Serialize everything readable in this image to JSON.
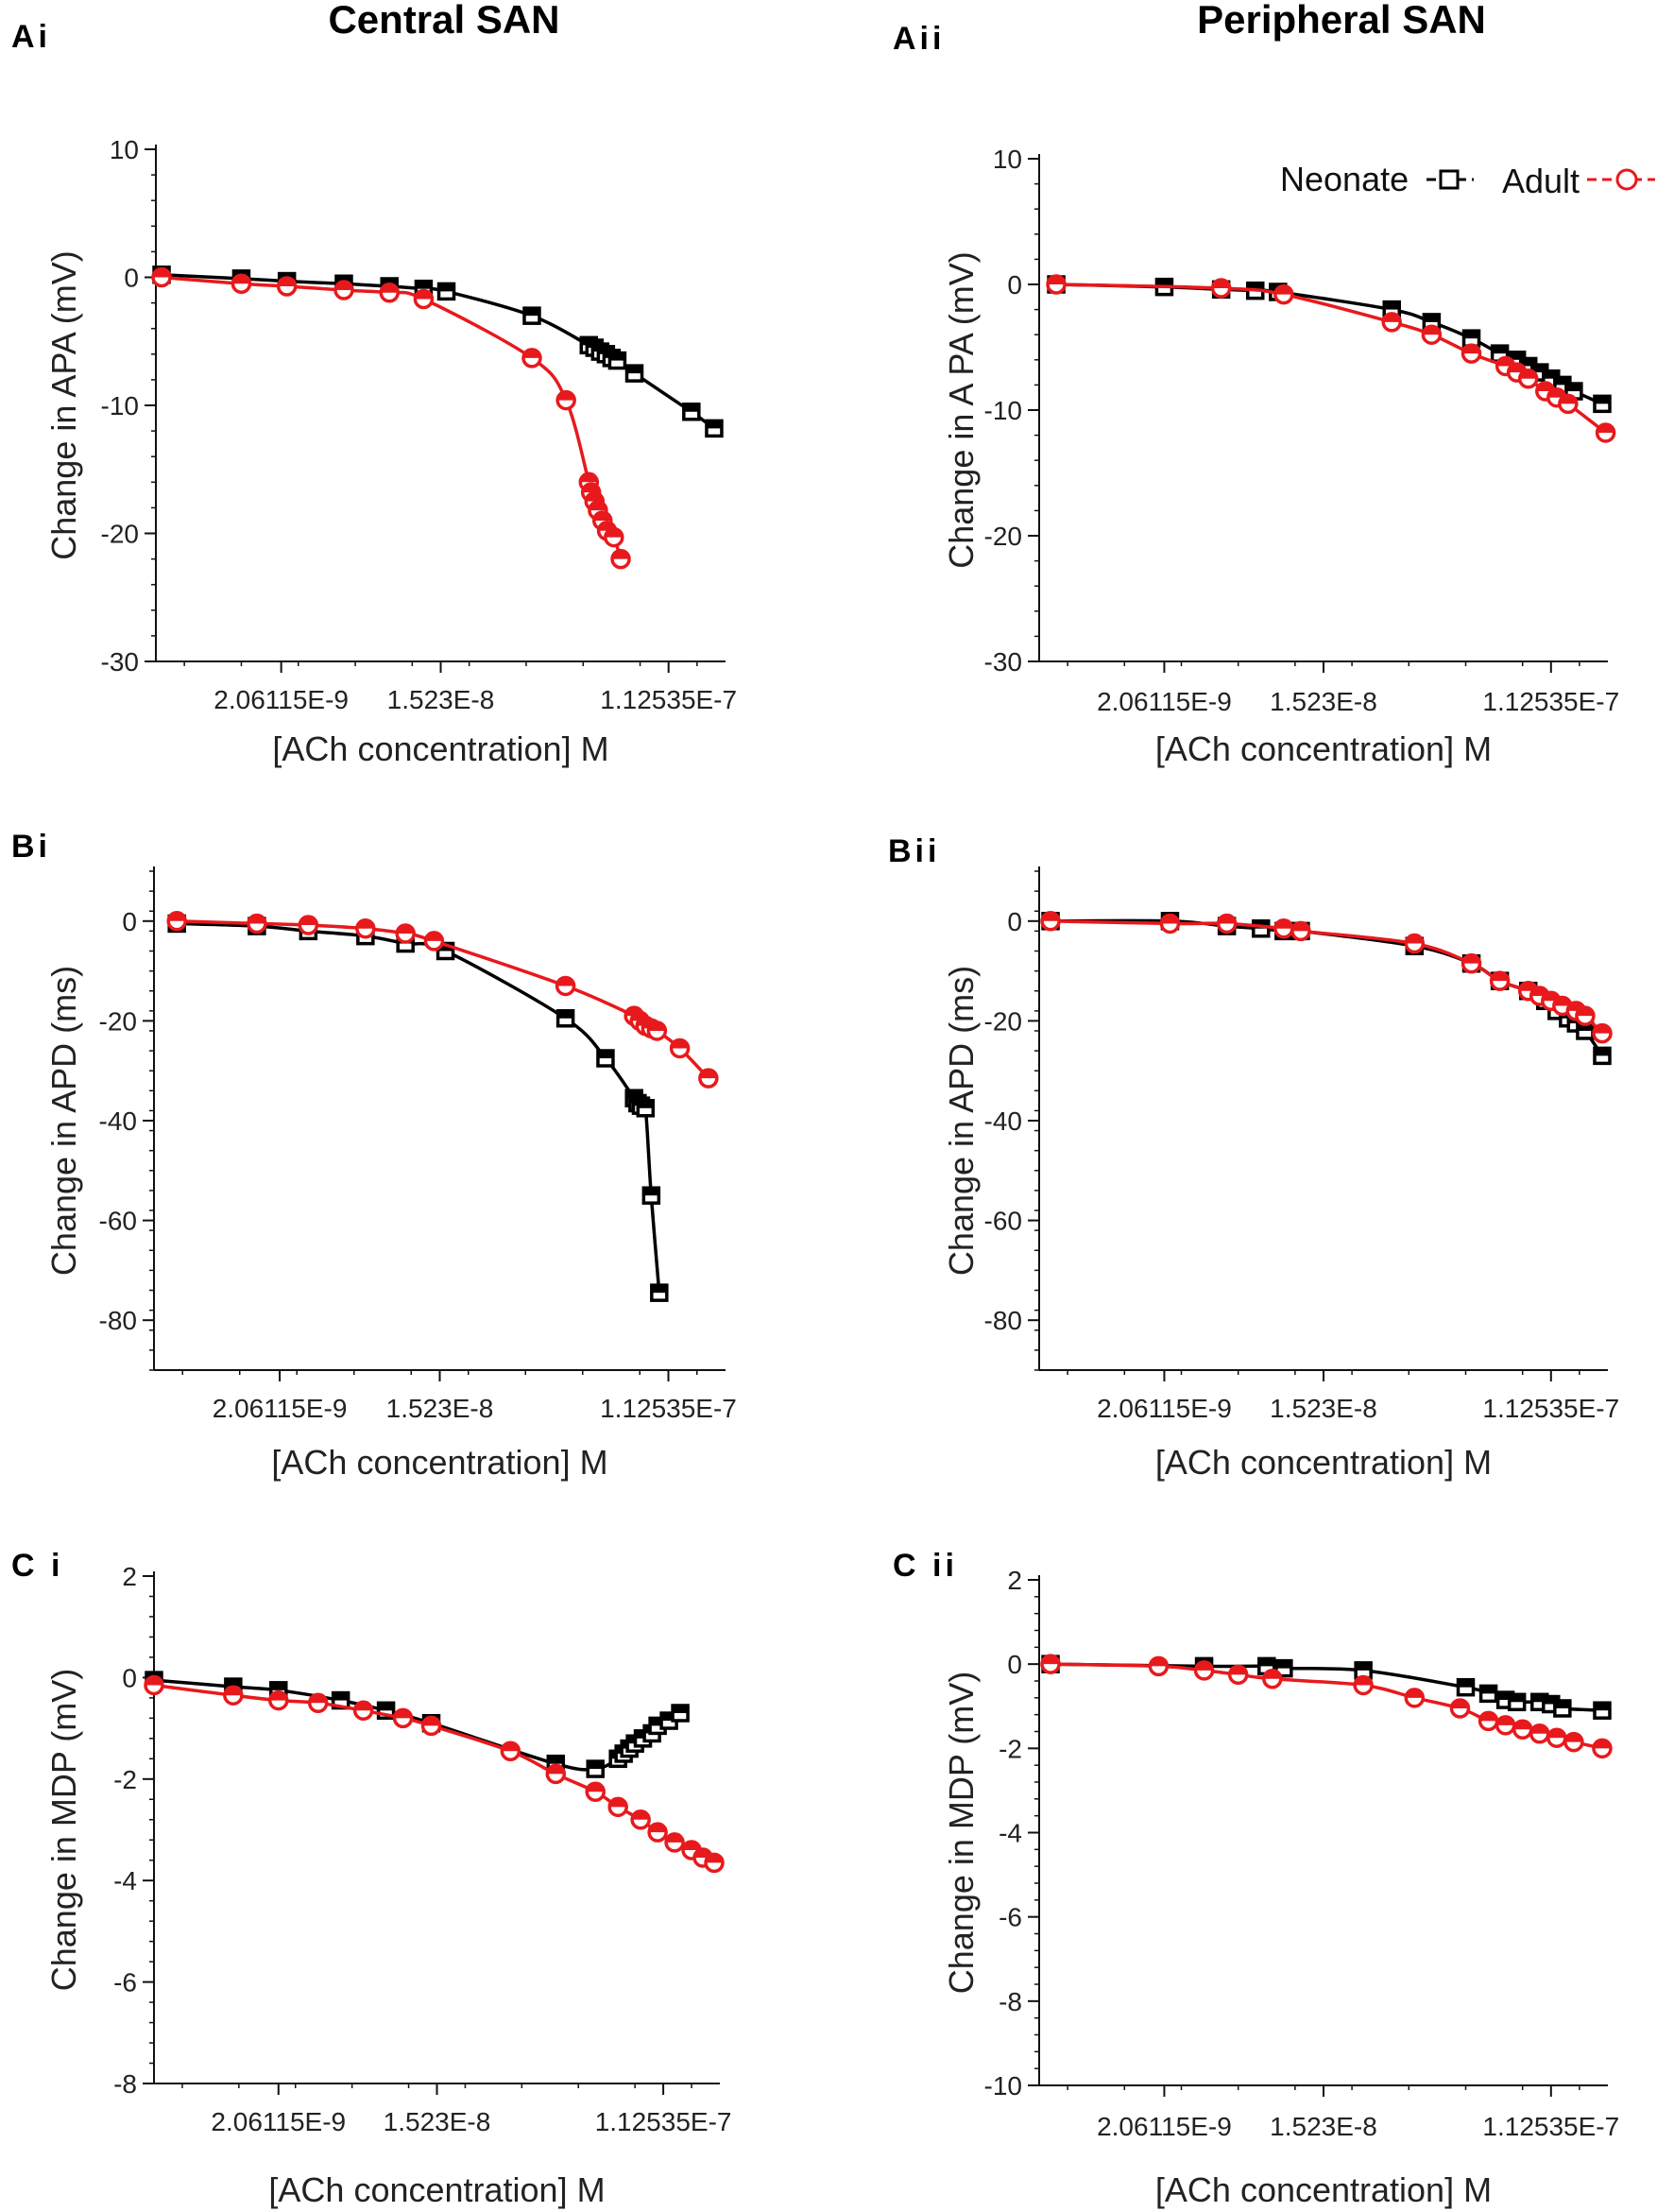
{
  "titles": {
    "left": "Central SAN",
    "right": "Peripheral SAN"
  },
  "legend": [
    {
      "label": "Neonate",
      "color": "#000000",
      "marker": "square"
    },
    {
      "label": "Adult",
      "color": "#e8191c",
      "marker": "circle"
    }
  ],
  "chart_data": [
    {
      "id": "Ai",
      "panel_label": "Ai",
      "type": "line",
      "xlabel": "[ACh  concentration] M",
      "ylabel": "Change in APA  (mV)",
      "xticks": [
        "2.06115E-9",
        "1.523E-8",
        "1.12535E-7"
      ],
      "xlim": [
        0,
        5
      ],
      "ylim": [
        -30,
        10
      ],
      "yticks": [
        10,
        0,
        -10,
        -20,
        -30
      ],
      "series": [
        {
          "name": "Neonate",
          "x": [
            0.05,
            0.75,
            1.15,
            1.65,
            2.05,
            2.35,
            2.55,
            3.3,
            3.8,
            3.85,
            3.9,
            3.95,
            4.0,
            4.05,
            4.2,
            4.7,
            4.9
          ],
          "values": [
            0.2,
            -0.1,
            -0.3,
            -0.5,
            -0.7,
            -0.9,
            -1.1,
            -3.0,
            -5.3,
            -5.5,
            -5.8,
            -6.0,
            -6.3,
            -6.5,
            -7.5,
            -10.5,
            -11.8
          ]
        },
        {
          "name": "Adult",
          "x": [
            0.05,
            0.75,
            1.15,
            1.65,
            2.05,
            2.35,
            3.3,
            3.6,
            3.8,
            3.82,
            3.85,
            3.88,
            3.92,
            3.96,
            4.02,
            4.08
          ],
          "values": [
            0.0,
            -0.5,
            -0.7,
            -1.0,
            -1.2,
            -1.7,
            -6.3,
            -9.6,
            -16.0,
            -16.8,
            -17.5,
            -18.2,
            -19.0,
            -19.8,
            -20.3,
            -22.0
          ]
        }
      ]
    },
    {
      "id": "Aii",
      "panel_label": "Aii",
      "type": "line",
      "xlabel": "[ACh  concentration] M",
      "ylabel": "Change in A PA  (mV)",
      "xticks": [
        "2.06115E-9",
        "1.523E-8",
        "1.12535E-7"
      ],
      "xlim": [
        0,
        5
      ],
      "ylim": [
        -30,
        10
      ],
      "yticks": [
        10,
        0,
        -10,
        -20,
        -30
      ],
      "series": [
        {
          "name": "Neonate",
          "x": [
            0.15,
            1.1,
            1.6,
            1.9,
            2.1,
            3.1,
            3.45,
            3.8,
            4.05,
            4.2,
            4.3,
            4.4,
            4.5,
            4.6,
            4.7,
            4.95
          ],
          "values": [
            0.0,
            -0.2,
            -0.4,
            -0.5,
            -0.6,
            -2.0,
            -3.0,
            -4.3,
            -5.5,
            -6.0,
            -6.5,
            -7.0,
            -7.5,
            -8.0,
            -8.5,
            -9.5
          ]
        },
        {
          "name": "Adult",
          "x": [
            0.15,
            1.6,
            2.15,
            3.1,
            3.45,
            3.8,
            4.1,
            4.2,
            4.3,
            4.45,
            4.55,
            4.65,
            4.98
          ],
          "values": [
            0.0,
            -0.3,
            -0.8,
            -3.0,
            -4.0,
            -5.5,
            -6.5,
            -7.0,
            -7.5,
            -8.5,
            -9.0,
            -9.5,
            -11.8
          ]
        }
      ]
    },
    {
      "id": "Bi",
      "panel_label": "Bi",
      "type": "line",
      "xlabel": "[ACh  concentration] M",
      "ylabel": "Change in APD  (ms)",
      "xticks": [
        "2.06115E-9",
        "1.523E-8",
        "1.12535E-7"
      ],
      "xlim": [
        0,
        5
      ],
      "ylim": [
        -90,
        10
      ],
      "yticks": [
        0,
        -20,
        -40,
        -60,
        -80
      ],
      "series": [
        {
          "name": "Neonate",
          "x": [
            0.2,
            0.9,
            1.35,
            1.85,
            2.2,
            2.55,
            3.6,
            3.95,
            4.2,
            4.23,
            4.26,
            4.3,
            4.35,
            4.42
          ],
          "values": [
            -0.5,
            -1.0,
            -2.0,
            -3.0,
            -4.5,
            -6.0,
            -19.5,
            -27.5,
            -35.5,
            -36.5,
            -37.0,
            -37.5,
            -55.0,
            -74.5
          ]
        },
        {
          "name": "Adult",
          "x": [
            0.2,
            0.9,
            1.35,
            1.85,
            2.2,
            2.45,
            3.6,
            4.2,
            4.25,
            4.3,
            4.35,
            4.4,
            4.6,
            4.85
          ],
          "values": [
            0.0,
            -0.5,
            -0.8,
            -1.5,
            -2.5,
            -4.0,
            -13.0,
            -19.0,
            -20.0,
            -21.0,
            -21.5,
            -22.0,
            -25.5,
            -31.5
          ]
        }
      ]
    },
    {
      "id": "Bii",
      "panel_label": "Bii",
      "type": "line",
      "xlabel": "[ACh  concentration] M",
      "ylabel": "Change in APD  (ms)",
      "xticks": [
        "2.06115E-9",
        "1.523E-8",
        "1.12535E-7"
      ],
      "xlim": [
        0,
        5
      ],
      "ylim": [
        -90,
        10
      ],
      "yticks": [
        0,
        -20,
        -40,
        -60,
        -80
      ],
      "series": [
        {
          "name": "Neonate",
          "x": [
            0.1,
            1.15,
            1.65,
            1.95,
            2.15,
            2.3,
            3.3,
            3.8,
            4.05,
            4.3,
            4.45,
            4.55,
            4.65,
            4.72,
            4.8,
            4.95
          ],
          "values": [
            0.0,
            0.0,
            -1.0,
            -1.5,
            -2.0,
            -2.0,
            -5.0,
            -8.5,
            -12.0,
            -14.0,
            -16.0,
            -18.0,
            -19.5,
            -20.5,
            -22.0,
            -27.0
          ]
        },
        {
          "name": "Adult",
          "x": [
            0.1,
            1.15,
            1.65,
            2.15,
            2.3,
            3.3,
            3.8,
            4.05,
            4.3,
            4.4,
            4.5,
            4.6,
            4.72,
            4.8,
            4.95
          ],
          "values": [
            0.0,
            -0.5,
            -0.5,
            -1.5,
            -2.0,
            -4.5,
            -8.5,
            -12.0,
            -14.0,
            -15.0,
            -16.0,
            -17.0,
            -18.0,
            -19.0,
            -22.5
          ]
        }
      ]
    },
    {
      "id": "Ci",
      "panel_label": "C i",
      "type": "line",
      "xlabel": "[ACh concentration] M",
      "ylabel": "Change in MDP (mV)",
      "xticks": [
        "2.06115E-9",
        "1.523E-8",
        "1.12535E-7"
      ],
      "xlim": [
        0,
        5
      ],
      "ylim": [
        -8,
        2
      ],
      "yticks": [
        2,
        0,
        -2,
        -4,
        -6,
        -8
      ],
      "series": [
        {
          "name": "Neonate",
          "x": [
            0.0,
            0.7,
            1.1,
            1.65,
            2.05,
            2.45,
            3.55,
            3.9,
            4.1,
            4.15,
            4.2,
            4.25,
            4.32,
            4.4,
            4.45,
            4.55,
            4.65
          ],
          "values": [
            -0.05,
            -0.18,
            -0.25,
            -0.45,
            -0.65,
            -0.9,
            -1.7,
            -1.8,
            -1.6,
            -1.5,
            -1.4,
            -1.3,
            -1.2,
            -1.1,
            -0.95,
            -0.85,
            -0.7
          ]
        },
        {
          "name": "Adult",
          "x": [
            0.0,
            0.7,
            1.1,
            1.45,
            1.85,
            2.2,
            2.45,
            3.15,
            3.55,
            3.9,
            4.1,
            4.3,
            4.45,
            4.6,
            4.75,
            4.85,
            4.95
          ],
          "values": [
            -0.15,
            -0.35,
            -0.45,
            -0.5,
            -0.65,
            -0.8,
            -0.95,
            -1.45,
            -1.9,
            -2.25,
            -2.55,
            -2.8,
            -3.05,
            -3.25,
            -3.4,
            -3.55,
            -3.65
          ]
        }
      ]
    },
    {
      "id": "Cii",
      "panel_label": "C ii",
      "type": "line",
      "xlabel": "[ACh concentration] M",
      "ylabel": "Change in MDP (mV)",
      "xticks": [
        "2.06115E-9",
        "1.523E-8",
        "1.12535E-7"
      ],
      "xlim": [
        0,
        5
      ],
      "ylim": [
        -10,
        2
      ],
      "yticks": [
        2,
        0,
        -2,
        -4,
        -6,
        -8,
        -10
      ],
      "series": [
        {
          "name": "Neonate",
          "x": [
            0.1,
            1.45,
            2.0,
            2.15,
            2.85,
            3.75,
            3.95,
            4.1,
            4.2,
            4.4,
            4.5,
            4.6,
            4.95
          ],
          "values": [
            0.0,
            -0.05,
            -0.05,
            -0.1,
            -0.15,
            -0.55,
            -0.7,
            -0.85,
            -0.9,
            -0.9,
            -0.95,
            -1.05,
            -1.1
          ]
        },
        {
          "name": "Adult",
          "x": [
            0.1,
            1.05,
            1.45,
            1.75,
            2.05,
            2.85,
            3.3,
            3.7,
            3.95,
            4.1,
            4.25,
            4.4,
            4.55,
            4.7,
            4.95
          ],
          "values": [
            0.0,
            -0.05,
            -0.15,
            -0.25,
            -0.35,
            -0.5,
            -0.8,
            -1.05,
            -1.35,
            -1.45,
            -1.55,
            -1.65,
            -1.75,
            -1.85,
            -2.0
          ]
        }
      ]
    }
  ]
}
